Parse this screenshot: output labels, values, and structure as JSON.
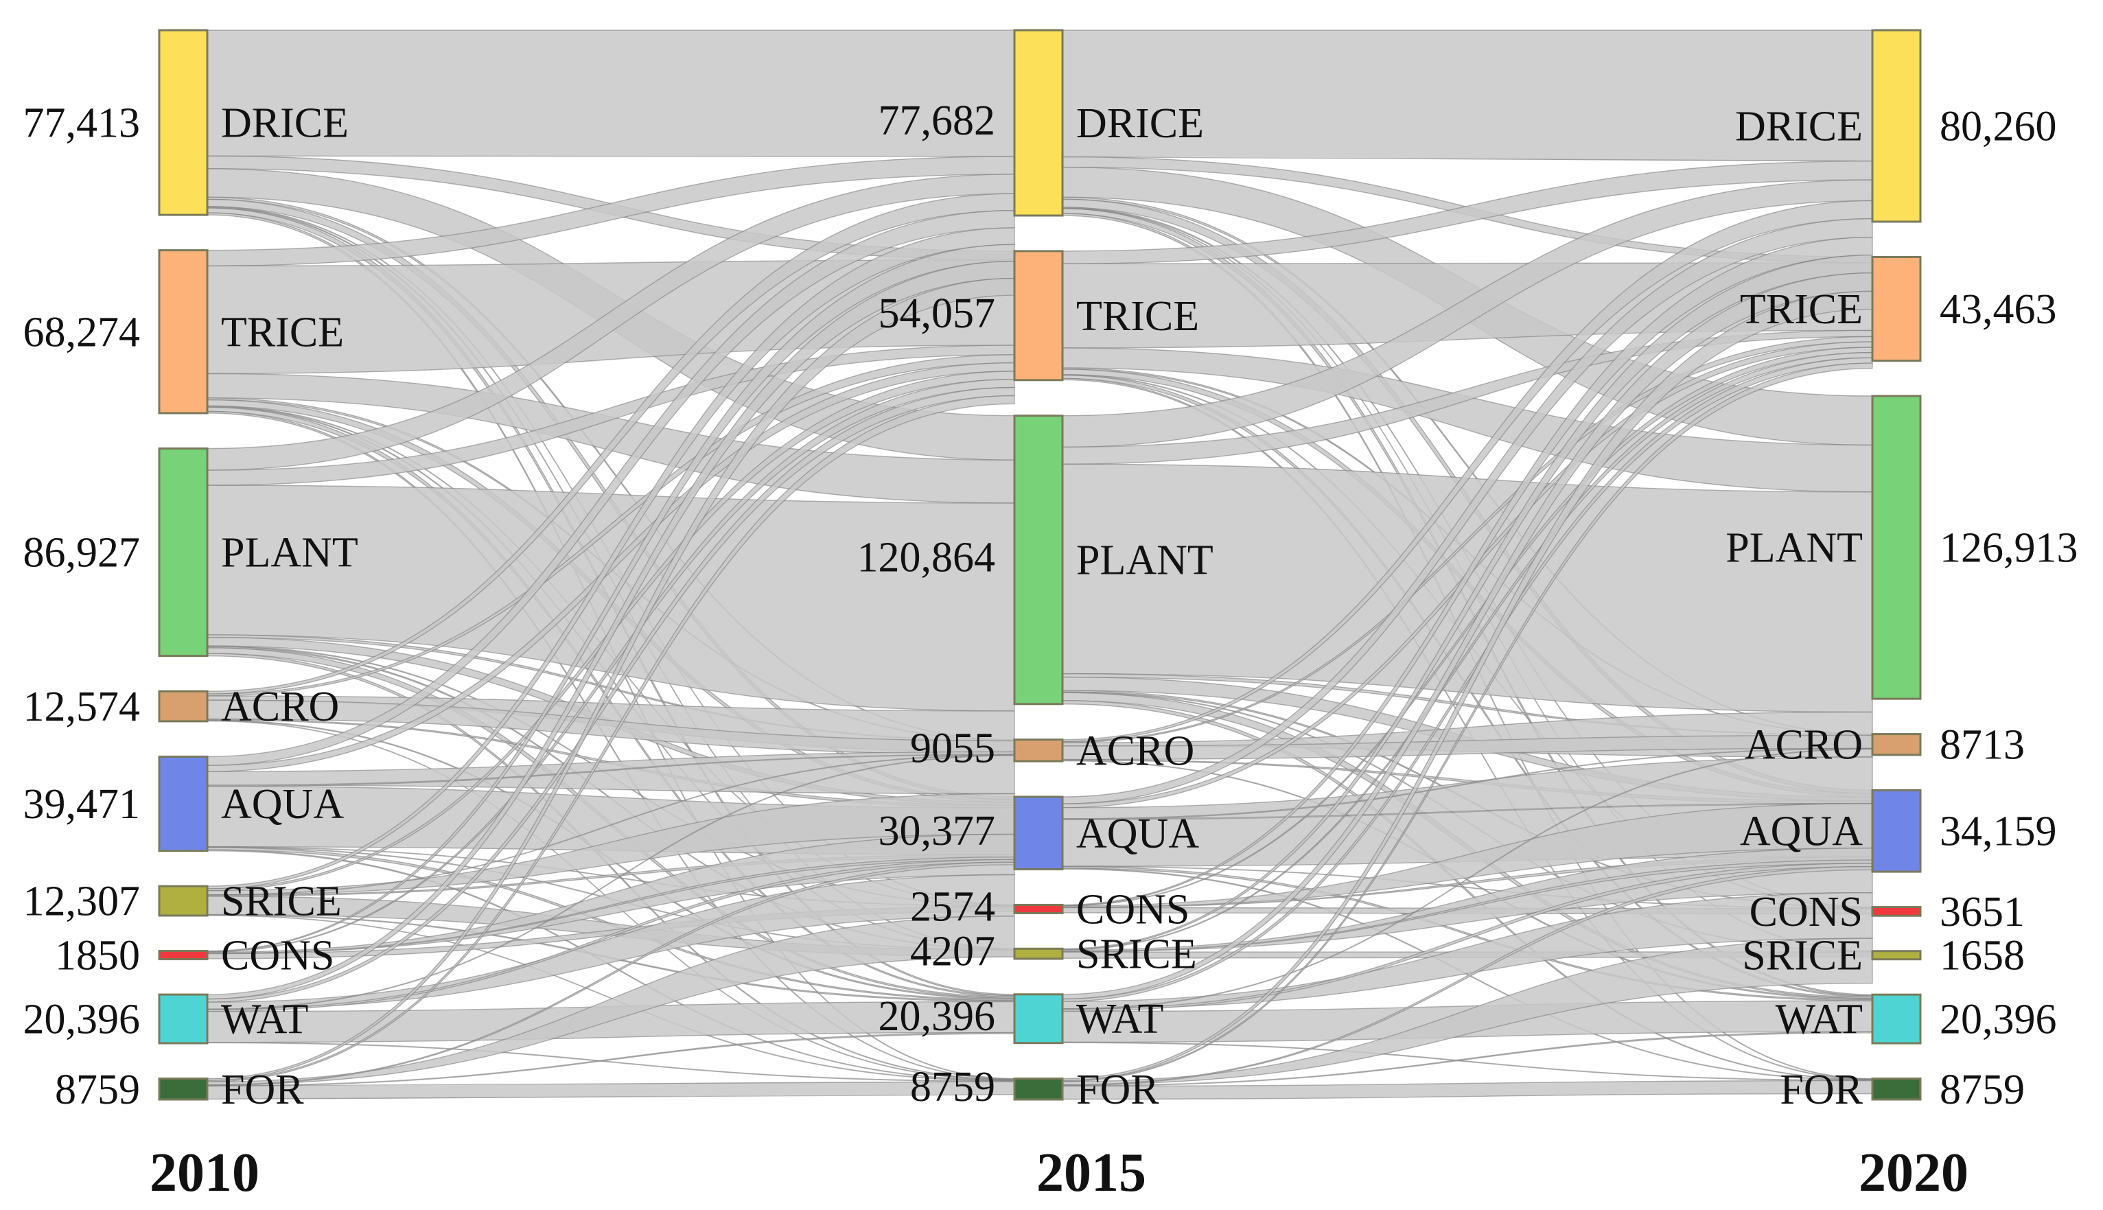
{
  "chart_data": {
    "type": "sankey",
    "years": [
      "2010",
      "2015",
      "2020"
    ],
    "colors": {
      "DRICE": "#fde05a",
      "TRICE": "#fdb27a",
      "PLANT": "#78d278",
      "ACRO": "#d8a06e",
      "AQUA": "#6f86e6",
      "SRICE": "#b0b040",
      "CONS": "#f0393e",
      "WAT": "#4fd4d4",
      "FOR": "#3b6d3b"
    },
    "columns": [
      {
        "year": "2010",
        "nodes": [
          {
            "id": "DRICE",
            "label": "DRICE",
            "value": "77,413"
          },
          {
            "id": "TRICE",
            "label": "TRICE",
            "value": "68,274"
          },
          {
            "id": "PLANT",
            "label": "PLANT",
            "value": "86,927"
          },
          {
            "id": "ACRO",
            "label": "ACRO",
            "value": "12,574"
          },
          {
            "id": "AQUA",
            "label": "AQUA",
            "value": "39,471"
          },
          {
            "id": "SRICE",
            "label": "SRICE",
            "value": "12,307"
          },
          {
            "id": "CONS",
            "label": "CONS",
            "value": "1850"
          },
          {
            "id": "WAT",
            "label": "WAT",
            "value": "20,396"
          },
          {
            "id": "FOR",
            "label": "FOR",
            "value": "8759"
          }
        ]
      },
      {
        "year": "2015",
        "nodes": [
          {
            "id": "DRICE",
            "label": "DRICE",
            "value": "77,682"
          },
          {
            "id": "TRICE",
            "label": "TRICE",
            "value": "54,057"
          },
          {
            "id": "PLANT",
            "label": "PLANT",
            "value": "120,864"
          },
          {
            "id": "ACRO",
            "label": "ACRO",
            "value": "9055"
          },
          {
            "id": "AQUA",
            "label": "AQUA",
            "value": "30,377"
          },
          {
            "id": "CONS",
            "label": "CONS",
            "value": "2574"
          },
          {
            "id": "SRICE",
            "label": "SRICE",
            "value": "4207"
          },
          {
            "id": "WAT",
            "label": "WAT",
            "value": "20,396"
          },
          {
            "id": "FOR",
            "label": "FOR",
            "value": "8759"
          }
        ]
      },
      {
        "year": "2020",
        "nodes": [
          {
            "id": "DRICE",
            "label": "DRICE",
            "value": "80,260"
          },
          {
            "id": "TRICE",
            "label": "TRICE",
            "value": "43,463"
          },
          {
            "id": "PLANT",
            "label": "PLANT",
            "value": "126,913"
          },
          {
            "id": "ACRO",
            "label": "ACRO",
            "value": "8713"
          },
          {
            "id": "AQUA",
            "label": "AQUA",
            "value": "34,159"
          },
          {
            "id": "CONS",
            "label": "CONS",
            "value": "3651"
          },
          {
            "id": "SRICE",
            "label": "SRICE",
            "value": "1658"
          },
          {
            "id": "WAT",
            "label": "WAT",
            "value": "20,396"
          },
          {
            "id": "FOR",
            "label": "FOR",
            "value": "8759"
          }
        ]
      }
    ]
  }
}
